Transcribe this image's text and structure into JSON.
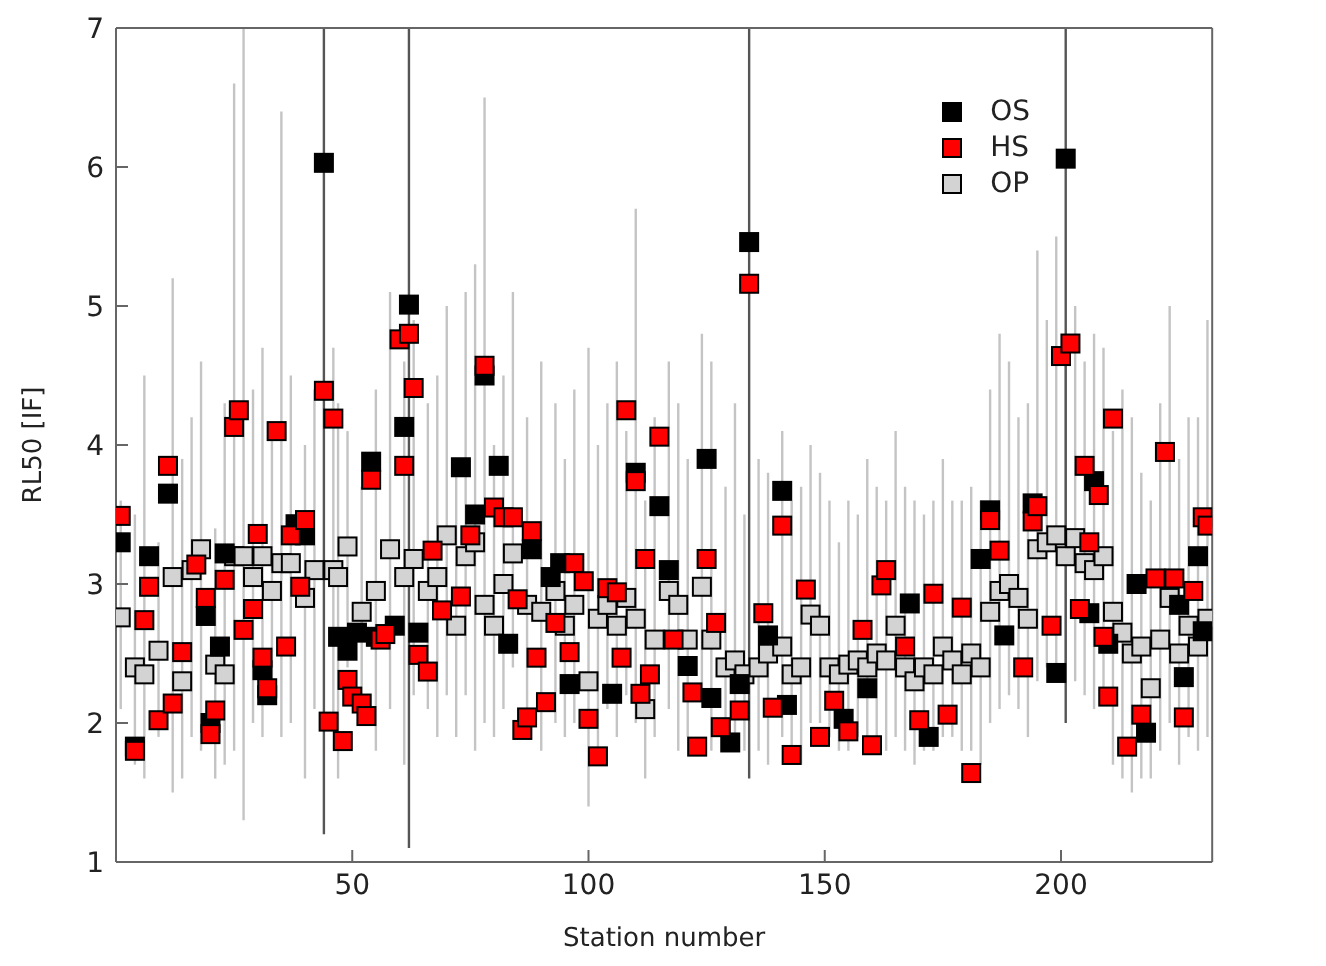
{
  "chart_data": {
    "type": "scatter",
    "xlabel": "Station number",
    "ylabel": "RL50 [IF]",
    "xlim": [
      0,
      232
    ],
    "xticks": [
      50,
      100,
      150,
      200
    ],
    "ylim": [
      1,
      7
    ],
    "yticks": [
      1,
      2,
      3,
      4,
      5,
      6,
      7
    ],
    "grid": false,
    "legend": "top right",
    "marker": "square",
    "series": [
      {
        "name": "OP",
        "color": "#d3d3d3",
        "x": [
          1,
          4,
          6,
          9,
          12,
          14,
          16,
          18,
          21,
          23,
          25,
          27,
          29,
          31,
          33,
          35,
          37,
          40,
          42,
          46,
          47,
          49,
          52,
          55,
          58,
          61,
          63,
          66,
          68,
          70,
          72,
          74,
          76,
          78,
          80,
          82,
          84,
          87,
          90,
          93,
          95,
          97,
          100,
          102,
          104,
          106,
          108,
          110,
          112,
          114,
          117,
          119,
          121,
          124,
          126,
          129,
          131,
          133,
          136,
          138,
          141,
          143,
          145,
          147,
          149,
          151,
          153,
          155,
          157,
          159,
          161,
          163,
          165,
          167,
          169,
          171,
          173,
          175,
          177,
          179,
          181,
          183,
          185,
          187,
          189,
          191,
          193,
          195,
          197,
          199,
          201,
          203,
          205,
          207,
          209,
          211,
          213,
          215,
          217,
          219,
          221,
          223,
          225,
          227,
          229,
          231
        ],
        "values": [
          2.76,
          2.4,
          2.35,
          2.52,
          3.05,
          2.3,
          3.1,
          3.25,
          2.42,
          2.35,
          3.2,
          3.2,
          3.05,
          3.2,
          2.95,
          3.15,
          3.15,
          2.9,
          3.1,
          3.1,
          3.05,
          3.27,
          2.8,
          2.95,
          3.25,
          3.05,
          3.18,
          2.95,
          3.05,
          3.35,
          2.7,
          3.2,
          3.3,
          2.85,
          2.7,
          3.0,
          3.22,
          2.85,
          2.8,
          2.95,
          2.7,
          2.85,
          2.3,
          2.75,
          2.85,
          2.7,
          2.9,
          2.75,
          2.1,
          2.6,
          2.95,
          2.85,
          2.6,
          2.98,
          2.6,
          2.4,
          2.45,
          2.35,
          2.4,
          2.5,
          2.55,
          2.35,
          2.4,
          2.78,
          2.7,
          2.4,
          2.35,
          2.42,
          2.45,
          2.4,
          2.5,
          2.45,
          2.7,
          2.4,
          2.3,
          2.4,
          2.35,
          2.55,
          2.45,
          2.35,
          2.5,
          2.4,
          2.8,
          2.95,
          3.0,
          2.9,
          2.75,
          3.25,
          3.3,
          3.35,
          3.2,
          3.33,
          3.15,
          3.1,
          3.2,
          2.8,
          2.65,
          2.5,
          2.55,
          2.25,
          2.6,
          2.9,
          2.5,
          2.7,
          2.55,
          2.75
        ],
        "errors": [
          [
            2.1,
            3.6
          ],
          [
            1.7,
            3.5
          ],
          [
            1.6,
            4.5
          ],
          [
            1.9,
            3.3
          ],
          [
            1.5,
            5.2
          ],
          [
            1.6,
            3.9
          ],
          [
            1.9,
            4.2
          ],
          [
            1.8,
            4.6
          ],
          [
            1.6,
            3.4
          ],
          [
            1.7,
            4.3
          ],
          [
            1.8,
            6.6
          ],
          [
            1.3,
            7
          ],
          [
            2.0,
            4.4
          ],
          [
            1.9,
            4.7
          ],
          [
            2.2,
            4.1
          ],
          [
            1.9,
            6.4
          ],
          [
            2.0,
            4.5
          ],
          [
            1.6,
            4.0
          ],
          [
            2.1,
            4.4
          ],
          [
            2.0,
            4.7
          ],
          [
            1.6,
            4.3
          ],
          [
            2.4,
            4.1
          ],
          [
            2.0,
            3.7
          ],
          [
            1.8,
            4.4
          ],
          [
            2.1,
            5.1
          ],
          [
            1.7,
            4.6
          ],
          [
            2.2,
            4.9
          ],
          [
            2.1,
            4.3
          ],
          [
            1.9,
            4.5
          ],
          [
            2.2,
            5.0
          ],
          [
            1.9,
            3.8
          ],
          [
            2.2,
            5.1
          ],
          [
            1.8,
            5.3
          ],
          [
            2.0,
            6.5
          ],
          [
            1.9,
            4.0
          ],
          [
            2.1,
            4.5
          ],
          [
            2.4,
            5.1
          ],
          [
            2.0,
            4.2
          ],
          [
            1.8,
            4.6
          ],
          [
            2.0,
            4.3
          ],
          [
            1.9,
            3.9
          ],
          [
            2.0,
            4.4
          ],
          [
            1.4,
            4.7
          ],
          [
            1.8,
            4.0
          ],
          [
            2.1,
            4.3
          ],
          [
            1.9,
            4.6
          ],
          [
            2.2,
            4.1
          ],
          [
            2.0,
            5.7
          ],
          [
            1.6,
            3.6
          ],
          [
            1.9,
            4.2
          ],
          [
            2.1,
            4.6
          ],
          [
            1.8,
            4.3
          ],
          [
            1.9,
            3.9
          ],
          [
            2.2,
            4.8
          ],
          [
            1.8,
            4.6
          ],
          [
            1.9,
            3.7
          ],
          [
            1.8,
            4.3
          ],
          [
            1.8,
            3.5
          ],
          [
            1.8,
            3.9
          ],
          [
            1.7,
            3.8
          ],
          [
            1.9,
            4.1
          ],
          [
            1.7,
            3.6
          ],
          [
            1.7,
            3.7
          ],
          [
            2.0,
            4.0
          ],
          [
            2.0,
            3.8
          ],
          [
            1.9,
            3.6
          ],
          [
            1.8,
            3.3
          ],
          [
            1.8,
            3.6
          ],
          [
            1.9,
            3.5
          ],
          [
            1.9,
            3.9
          ],
          [
            1.8,
            3.7
          ],
          [
            1.8,
            3.6
          ],
          [
            1.9,
            4.1
          ],
          [
            1.8,
            3.7
          ],
          [
            1.7,
            3.6
          ],
          [
            1.8,
            3.5
          ],
          [
            1.8,
            3.6
          ],
          [
            1.9,
            3.9
          ],
          [
            1.9,
            3.6
          ],
          [
            1.8,
            3.6
          ],
          [
            1.8,
            3.7
          ],
          [
            1.7,
            3.6
          ],
          [
            2.0,
            4.4
          ],
          [
            2.1,
            4.8
          ],
          [
            2.2,
            4.6
          ],
          [
            2.1,
            4.2
          ],
          [
            1.9,
            4.3
          ],
          [
            2.3,
            5.4
          ],
          [
            2.4,
            4.9
          ],
          [
            2.4,
            5.5
          ],
          [
            2.3,
            4.6
          ],
          [
            2.3,
            5.0
          ],
          [
            2.2,
            4.6
          ],
          [
            2.1,
            4.8
          ],
          [
            2.2,
            4.7
          ],
          [
            1.7,
            4.1
          ],
          [
            1.6,
            4.4
          ],
          [
            1.5,
            4.2
          ],
          [
            1.6,
            3.8
          ],
          [
            1.6,
            3.6
          ],
          [
            1.8,
            4.3
          ],
          [
            2.0,
            5.0
          ],
          [
            1.7,
            3.9
          ],
          [
            1.9,
            4.2
          ],
          [
            1.8,
            4.2
          ],
          [
            1.9,
            4.9
          ]
        ]
      },
      {
        "name": "OS",
        "color": "#000000",
        "x": [
          1,
          4,
          7,
          11,
          19,
          20,
          22,
          23,
          31,
          32,
          38,
          40,
          44,
          47,
          49,
          51,
          54,
          55,
          59,
          61,
          62,
          64,
          73,
          76,
          78,
          81,
          83,
          88,
          92,
          94,
          96,
          105,
          110,
          115,
          117,
          121,
          125,
          126,
          130,
          132,
          134,
          138,
          141,
          142,
          154,
          159,
          168,
          172,
          183,
          185,
          188,
          194,
          199,
          201,
          206,
          207,
          210,
          216,
          218,
          225,
          226,
          229,
          230
        ],
        "values": [
          3.3,
          1.83,
          3.2,
          3.65,
          2.77,
          2.0,
          2.55,
          3.22,
          2.38,
          2.2,
          3.43,
          3.35,
          6.03,
          2.62,
          2.52,
          2.65,
          3.88,
          2.62,
          2.7,
          4.13,
          5.01,
          2.65,
          3.84,
          3.5,
          4.5,
          3.85,
          2.57,
          3.25,
          3.05,
          3.15,
          2.28,
          2.21,
          3.8,
          3.56,
          3.1,
          2.41,
          3.9,
          2.18,
          1.86,
          2.28,
          5.46,
          2.63,
          3.67,
          2.13,
          2.03,
          2.25,
          2.86,
          1.9,
          3.18,
          3.53,
          2.63,
          3.58,
          2.36,
          6.06,
          2.79,
          3.74,
          2.57,
          3.0,
          1.93,
          2.85,
          2.33,
          3.2,
          2.66
        ],
        "errors": [
          null,
          null,
          null,
          null,
          null,
          null,
          null,
          null,
          null,
          null,
          null,
          null,
          [
            1.2,
            7
          ],
          null,
          null,
          null,
          null,
          null,
          null,
          null,
          [
            1.1,
            7
          ],
          null,
          null,
          null,
          null,
          null,
          null,
          null,
          null,
          null,
          null,
          null,
          null,
          null,
          null,
          null,
          null,
          null,
          null,
          null,
          [
            1.6,
            7
          ],
          null,
          null,
          null,
          null,
          null,
          null,
          null,
          null,
          null,
          null,
          null,
          null,
          [
            2.0,
            7
          ],
          null,
          null,
          null,
          null,
          null,
          null,
          null,
          null,
          null
        ]
      },
      {
        "name": "HS",
        "color": "#ff0000",
        "x": [
          1,
          4,
          6,
          7,
          9,
          11,
          12,
          14,
          17,
          19,
          20,
          21,
          23,
          25,
          26,
          27,
          29,
          30,
          31,
          32,
          34,
          36,
          37,
          39,
          40,
          44,
          45,
          46,
          48,
          49,
          50,
          52,
          53,
          54,
          56,
          57,
          60,
          61,
          62,
          63,
          64,
          66,
          67,
          69,
          73,
          75,
          78,
          80,
          82,
          84,
          85,
          86,
          87,
          88,
          89,
          91,
          93,
          96,
          97,
          99,
          100,
          102,
          104,
          106,
          107,
          108,
          110,
          111,
          112,
          113,
          115,
          118,
          122,
          123,
          125,
          127,
          128,
          132,
          134,
          137,
          139,
          141,
          143,
          146,
          149,
          152,
          155,
          158,
          160,
          162,
          163,
          167,
          170,
          173,
          176,
          179,
          181,
          185,
          187,
          192,
          194,
          195,
          198,
          200,
          202,
          204,
          205,
          206,
          208,
          209,
          210,
          211,
          214,
          217,
          220,
          222,
          224,
          226,
          228,
          230,
          231
        ],
        "values": [
          3.49,
          1.8,
          2.74,
          2.98,
          2.02,
          3.85,
          2.14,
          2.51,
          3.14,
          2.9,
          1.92,
          2.09,
          3.03,
          4.13,
          4.25,
          2.67,
          2.82,
          3.36,
          2.47,
          2.25,
          4.1,
          2.55,
          3.35,
          2.98,
          3.46,
          4.39,
          2.01,
          4.19,
          1.87,
          2.31,
          2.19,
          2.14,
          2.05,
          3.75,
          2.6,
          2.64,
          4.76,
          3.85,
          4.8,
          4.41,
          2.49,
          2.37,
          3.24,
          2.81,
          2.91,
          3.35,
          4.57,
          3.55,
          3.48,
          3.48,
          2.89,
          1.95,
          2.04,
          3.38,
          2.47,
          2.15,
          2.72,
          2.51,
          3.15,
          3.02,
          2.03,
          1.76,
          2.97,
          2.94,
          2.47,
          4.25,
          3.74,
          2.21,
          3.18,
          2.35,
          4.06,
          2.6,
          2.22,
          1.83,
          3.18,
          2.72,
          1.97,
          2.09,
          5.16,
          2.79,
          2.11,
          3.42,
          1.77,
          2.96,
          1.9,
          2.16,
          1.94,
          2.67,
          1.84,
          2.99,
          3.1,
          2.55,
          2.02,
          2.93,
          2.06,
          2.83,
          1.64,
          3.46,
          3.24,
          2.4,
          3.45,
          3.56,
          2.7,
          4.64,
          4.73,
          2.82,
          3.85,
          3.3,
          3.64,
          2.62,
          2.19,
          4.19,
          1.83,
          2.06,
          3.04,
          3.95,
          3.04,
          2.04,
          2.95,
          3.48,
          3.42
        ]
      }
    ]
  }
}
